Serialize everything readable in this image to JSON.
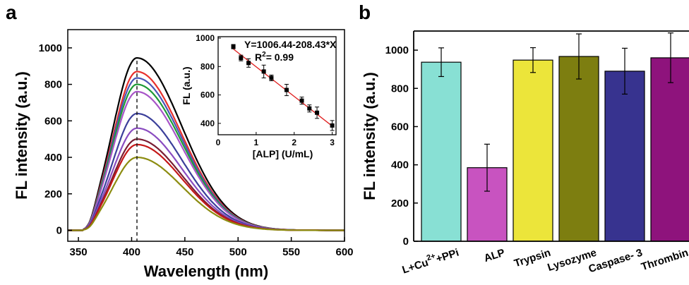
{
  "panels": {
    "a_letter": "a",
    "b_letter": "b"
  },
  "chart_data": [
    {
      "type": "line",
      "xlabel": "Wavelength (nm)",
      "ylabel": "FL intensity (a.u.)",
      "xlim": [
        340,
        600
      ],
      "ylim": [
        -60,
        1100
      ],
      "x_ticks": [
        350,
        400,
        450,
        500,
        550,
        600
      ],
      "y_ticks": [
        0,
        200,
        400,
        600,
        800,
        1000
      ],
      "peak_wavelength": 405,
      "series": [
        {
          "color": "#000000",
          "peak": 945
        },
        {
          "color": "#e8302c",
          "peak": 870
        },
        {
          "color": "#4a56b6",
          "peak": 835
        },
        {
          "color": "#1e9a36",
          "peak": 800
        },
        {
          "color": "#a855c8",
          "peak": 760
        },
        {
          "color": "#3b3f9a",
          "peak": 640
        },
        {
          "color": "#8a4cc0",
          "peak": 560
        },
        {
          "color": "#7a1e34",
          "peak": 500
        },
        {
          "color": "#c41818",
          "peak": 470
        },
        {
          "color": "#8c8c10",
          "peak": 400
        }
      ],
      "inset": {
        "type": "scatter",
        "xlabel": "[ALP] (U/mL)",
        "ylabel": "FL (a.u.)",
        "xlim": [
          0,
          3.1
        ],
        "ylim": [
          320,
          1010
        ],
        "x_ticks": [
          0,
          1,
          2,
          3
        ],
        "y_ticks": [
          400,
          600,
          800,
          1000
        ],
        "equation": "Y=1006.44-208.43*X",
        "r2_label": "R",
        "r2_sup": "2",
        "r2_value": "= 0.99",
        "fit": {
          "intercept": 1006.44,
          "slope": -208.43
        },
        "points": [
          {
            "x": 0.4,
            "y": 940,
            "err": 15
          },
          {
            "x": 0.6,
            "y": 860,
            "err": 20
          },
          {
            "x": 0.8,
            "y": 825,
            "err": 30
          },
          {
            "x": 1.2,
            "y": 765,
            "err": 45
          },
          {
            "x": 1.4,
            "y": 720,
            "err": 20
          },
          {
            "x": 1.8,
            "y": 635,
            "err": 40
          },
          {
            "x": 2.2,
            "y": 560,
            "err": 25
          },
          {
            "x": 2.4,
            "y": 505,
            "err": 25
          },
          {
            "x": 2.6,
            "y": 475,
            "err": 40
          },
          {
            "x": 3.0,
            "y": 385,
            "err": 35
          }
        ]
      }
    },
    {
      "type": "bar",
      "ylabel": "FL intensity (a.u.)",
      "ylim": [
        0,
        1100
      ],
      "y_ticks": [
        0,
        200,
        400,
        600,
        800,
        1000
      ],
      "categories": [
        "L+Cu",
        "ALP",
        "Trypsin",
        "Lysozyme",
        "Caspase- 3",
        "Thrombin"
      ],
      "first_label_sup": "2+",
      "first_label_tail": "+PPi",
      "values": [
        937,
        385,
        948,
        967,
        890,
        960
      ],
      "errors": [
        75,
        123,
        65,
        118,
        120,
        130
      ],
      "colors": [
        "#88e0d4",
        "#c853c0",
        "#ece53a",
        "#7d7e10",
        "#37338f",
        "#8e137c"
      ]
    }
  ]
}
